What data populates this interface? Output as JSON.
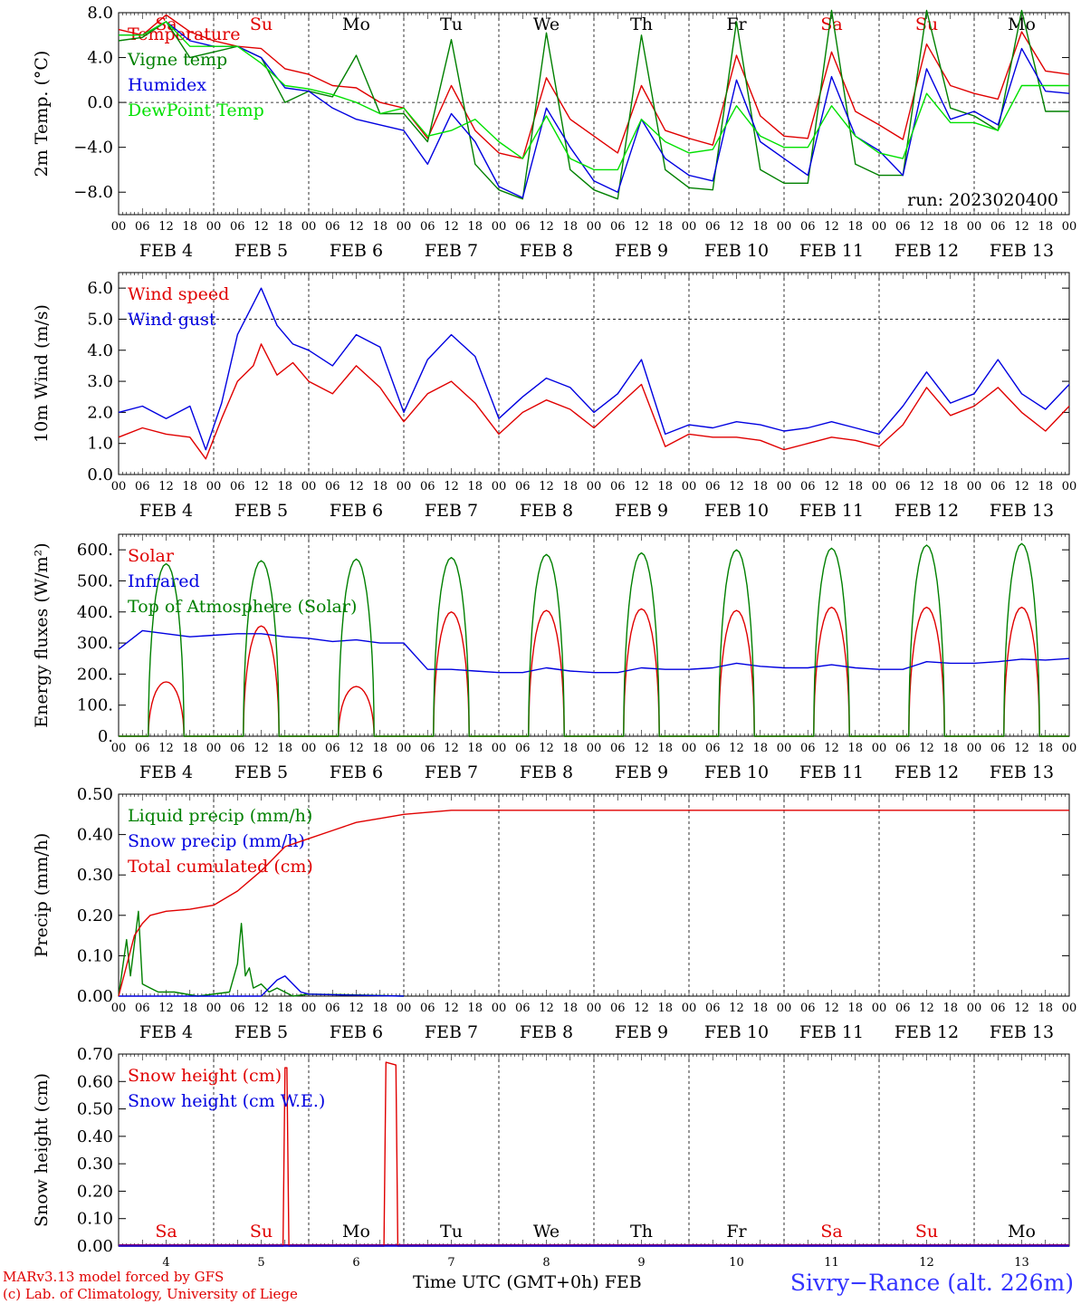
{
  "days": {
    "weekdays": [
      "Sa",
      "Su",
      "Mo",
      "Tu",
      "We",
      "Th",
      "Fr",
      "Sa",
      "Su",
      "Mo"
    ],
    "weekend_color": "#e00000",
    "weekday_color": "#000000",
    "date_labels": [
      "FEB  4",
      "FEB  5",
      "FEB  6",
      "FEB  7",
      "FEB  8",
      "FEB  9",
      "FEB 10",
      "FEB 11",
      "FEB 12",
      "FEB 13"
    ],
    "hour_ticks": [
      "00",
      "06",
      "12",
      "18"
    ],
    "final_tick": "00",
    "day_numbers": [
      "4",
      "5",
      "6",
      "7",
      "8",
      "9",
      "10",
      "11",
      "12",
      "13"
    ]
  },
  "colors": {
    "red": "#e00000",
    "green": "#008000",
    "blue": "#0000e0",
    "lightgreen": "#00e000",
    "purple": "#800080"
  },
  "chart_data": [
    {
      "type": "line",
      "ylabel": "2m Temp. (°C)",
      "ylim": [
        -10,
        8
      ],
      "yticks": [
        "8.0",
        "4.0",
        "0.0",
        "−4.0",
        "−8.0"
      ],
      "ytick_values": [
        8,
        4,
        0,
        -4,
        -8
      ],
      "run_label": "run: 2023020400",
      "x_unit": "hours since FEB 4 00 UTC",
      "series": [
        {
          "name": "Temperature",
          "color": "#e00000",
          "x": [
            0,
            6,
            12,
            18,
            24,
            30,
            36,
            42,
            48,
            54,
            60,
            66,
            72,
            78,
            84,
            90,
            96,
            102,
            108,
            114,
            120,
            126,
            132,
            138,
            144,
            150,
            156,
            162,
            168,
            174,
            180,
            186,
            192,
            198,
            204,
            210,
            216,
            222,
            228,
            234,
            240
          ],
          "y": [
            6.5,
            6,
            7.8,
            6.3,
            5.5,
            5,
            4.8,
            3,
            2.5,
            1.5,
            1.3,
            0,
            -0.5,
            -3.2,
            1.5,
            -2.5,
            -4.5,
            -5,
            2.2,
            -1.5,
            -3,
            -4.5,
            1.5,
            -2.5,
            -3.2,
            -3.8,
            4.2,
            -1.2,
            -3,
            -3.2,
            4.5,
            -0.8,
            -2,
            -3.3,
            5.2,
            1.5,
            0.8,
            0.3,
            6.3,
            2.8,
            2.5
          ]
        },
        {
          "name": "Vigne temp",
          "color": "#008000",
          "x": [
            0,
            6,
            12,
            18,
            24,
            30,
            36,
            42,
            48,
            54,
            60,
            66,
            72,
            78,
            84,
            90,
            96,
            102,
            108,
            114,
            120,
            126,
            132,
            138,
            144,
            150,
            156,
            162,
            168,
            174,
            180,
            186,
            192,
            198,
            204,
            210,
            216,
            222,
            228,
            234,
            240
          ],
          "y": [
            5.5,
            5.8,
            7.2,
            4,
            4.5,
            5,
            4,
            0,
            1,
            0.5,
            4.2,
            -1,
            -1,
            -3.5,
            5.6,
            -5.5,
            -7.8,
            -8.6,
            6.2,
            -6,
            -7.8,
            -8.6,
            6,
            -6,
            -7.6,
            -7.8,
            7.2,
            -6,
            -7.2,
            -7.2,
            8.2,
            -5.5,
            -6.5,
            -6.5,
            8.2,
            -0.5,
            -1.2,
            -2.5,
            8.2,
            -0.8,
            -0.8
          ]
        },
        {
          "name": "Humidex",
          "color": "#0000e0",
          "x": [
            0,
            6,
            12,
            18,
            24,
            30,
            36,
            42,
            48,
            54,
            60,
            66,
            72,
            78,
            84,
            90,
            96,
            102,
            108,
            114,
            120,
            126,
            132,
            138,
            144,
            150,
            156,
            162,
            168,
            174,
            180,
            186,
            192,
            198,
            204,
            210,
            216,
            222,
            228,
            234,
            240
          ],
          "y": [
            6,
            6,
            7.2,
            5.5,
            5,
            5,
            4,
            1.3,
            1,
            -0.5,
            -1.5,
            -2,
            -2.5,
            -5.5,
            -1,
            -3.5,
            -7.5,
            -8.5,
            -0.5,
            -4,
            -7,
            -8,
            -1.5,
            -5,
            -6.5,
            -7,
            2,
            -3.5,
            -5,
            -6.5,
            2.3,
            -3,
            -4.3,
            -6.5,
            3,
            -1.5,
            -0.8,
            -2,
            4.8,
            1,
            0.8
          ]
        },
        {
          "name": "DewPoint Temp",
          "color": "#00e000",
          "x": [
            0,
            6,
            12,
            18,
            24,
            30,
            36,
            42,
            48,
            54,
            60,
            66,
            72,
            78,
            84,
            90,
            96,
            102,
            108,
            114,
            120,
            126,
            132,
            138,
            144,
            150,
            156,
            162,
            168,
            174,
            180,
            186,
            192,
            198,
            204,
            210,
            216,
            222,
            228,
            234,
            240
          ],
          "y": [
            6,
            6,
            7.2,
            5,
            5,
            5,
            3.5,
            1.5,
            1.2,
            0.7,
            0,
            -1,
            -0.5,
            -3,
            -2.5,
            -1.5,
            -3.5,
            -5,
            -1.2,
            -5,
            -6,
            -6,
            -1.5,
            -3.5,
            -4.5,
            -4.2,
            -0.3,
            -3,
            -4,
            -4,
            -0.3,
            -3,
            -4.5,
            -5,
            0.8,
            -1.8,
            -1.8,
            -2.5,
            1.5,
            1.5,
            1.5
          ]
        }
      ]
    },
    {
      "type": "line",
      "ylabel": "10m Wind (m/s)",
      "ylim": [
        0,
        6.5
      ],
      "yticks": [
        "6.0",
        "5.0",
        "4.0",
        "3.0",
        "2.0",
        "1.0",
        "0.0"
      ],
      "ytick_values": [
        6,
        5,
        4,
        3,
        2,
        1,
        0
      ],
      "dashed_level": 5.0,
      "x_unit": "hours since FEB 4 00 UTC",
      "series": [
        {
          "name": "Wind speed",
          "color": "#e00000",
          "x": [
            0,
            6,
            12,
            18,
            22,
            26,
            30,
            34,
            36,
            40,
            44,
            48,
            54,
            60,
            66,
            72,
            78,
            84,
            90,
            96,
            102,
            108,
            114,
            120,
            126,
            132,
            138,
            144,
            150,
            156,
            162,
            168,
            174,
            180,
            186,
            192,
            198,
            204,
            210,
            216,
            222,
            228,
            234,
            240
          ],
          "y": [
            1.2,
            1.5,
            1.3,
            1.2,
            0.5,
            1.8,
            3,
            3.5,
            4.2,
            3.2,
            3.6,
            3,
            2.6,
            3.5,
            2.8,
            1.7,
            2.6,
            3,
            2.3,
            1.3,
            2,
            2.4,
            2.1,
            1.5,
            2.2,
            2.9,
            0.9,
            1.3,
            1.2,
            1.2,
            1.1,
            0.8,
            1.0,
            1.2,
            1.1,
            0.9,
            1.6,
            2.8,
            1.9,
            2.2,
            2.8,
            2.0,
            1.4,
            2.2
          ]
        },
        {
          "name": "Wind gust",
          "color": "#0000e0",
          "x": [
            0,
            6,
            12,
            18,
            22,
            26,
            30,
            34,
            36,
            40,
            44,
            48,
            54,
            60,
            66,
            72,
            78,
            84,
            90,
            96,
            102,
            108,
            114,
            120,
            126,
            132,
            138,
            144,
            150,
            156,
            162,
            168,
            174,
            180,
            186,
            192,
            198,
            204,
            210,
            216,
            222,
            228,
            234,
            240
          ],
          "y": [
            2,
            2.2,
            1.8,
            2.2,
            0.8,
            2.3,
            4.5,
            5.5,
            6,
            4.8,
            4.2,
            4,
            3.5,
            4.5,
            4.1,
            2,
            3.7,
            4.5,
            3.8,
            1.8,
            2.5,
            3.1,
            2.8,
            2,
            2.6,
            3.7,
            1.3,
            1.6,
            1.5,
            1.7,
            1.6,
            1.4,
            1.5,
            1.7,
            1.5,
            1.3,
            2.2,
            3.3,
            2.3,
            2.6,
            3.7,
            2.6,
            2.1,
            2.9
          ]
        }
      ]
    },
    {
      "type": "line",
      "ylabel": "Energy fluxes (W/m²)",
      "ylim": [
        0,
        650
      ],
      "yticks": [
        "600.",
        "500.",
        "400.",
        "300.",
        "200.",
        "100.",
        "0."
      ],
      "ytick_values": [
        600,
        500,
        400,
        300,
        200,
        100,
        0
      ],
      "x_unit": "hours since FEB 4 00 UTC",
      "solar_noon_hour": 12,
      "solar_halfwidth_hours": 4.5,
      "series": [
        {
          "name": "Solar",
          "color": "#e00000",
          "daily_peaks": [
            175,
            355,
            160,
            400,
            405,
            410,
            405,
            415,
            415,
            415
          ]
        },
        {
          "name": "Infrared",
          "color": "#0000e0",
          "x": [
            0,
            6,
            12,
            18,
            24,
            30,
            36,
            42,
            48,
            54,
            60,
            66,
            72,
            78,
            84,
            90,
            96,
            102,
            108,
            114,
            120,
            126,
            132,
            138,
            144,
            150,
            156,
            162,
            168,
            174,
            180,
            186,
            192,
            198,
            204,
            210,
            216,
            222,
            228,
            234,
            240
          ],
          "y": [
            280,
            340,
            330,
            320,
            325,
            330,
            330,
            320,
            315,
            305,
            310,
            300,
            300,
            215,
            215,
            210,
            205,
            205,
            220,
            210,
            205,
            205,
            220,
            215,
            215,
            220,
            235,
            225,
            220,
            220,
            230,
            220,
            215,
            215,
            240,
            235,
            235,
            240,
            248,
            245,
            250
          ]
        },
        {
          "name": "Top of Atmosphere (Solar)",
          "color": "#008000",
          "daily_peaks": [
            555,
            565,
            570,
            575,
            585,
            590,
            600,
            605,
            615,
            620
          ]
        }
      ]
    },
    {
      "type": "line",
      "ylabel": "Precip (mm/h)",
      "ylim": [
        0,
        0.5
      ],
      "yticks": [
        "0.50",
        "0.40",
        "0.30",
        "0.20",
        "0.10",
        "0.00"
      ],
      "ytick_values": [
        0.5,
        0.4,
        0.3,
        0.2,
        0.1,
        0
      ],
      "x_unit": "hours since FEB 4 00 UTC",
      "series": [
        {
          "name": "Liquid precip (mm/h)",
          "color": "#008000",
          "x": [
            0,
            2,
            3,
            5,
            6,
            8,
            10,
            14,
            20,
            28,
            30,
            31,
            32,
            33,
            34,
            36,
            38,
            40,
            44,
            48,
            60,
            72
          ],
          "y": [
            0,
            0.14,
            0.05,
            0.21,
            0.03,
            0.02,
            0.01,
            0.01,
            0,
            0.01,
            0.08,
            0.18,
            0.05,
            0.07,
            0.02,
            0.03,
            0.01,
            0.02,
            0,
            0.005,
            0.003,
            0
          ]
        },
        {
          "name": "Snow precip (mm/h)",
          "color": "#0000e0",
          "x": [
            0,
            36,
            38,
            40,
            42,
            44,
            46,
            48,
            60,
            72
          ],
          "y": [
            0,
            0,
            0.02,
            0.04,
            0.05,
            0.03,
            0.01,
            0.005,
            0.002,
            0
          ]
        },
        {
          "name": "Total cumulated (cm)",
          "color": "#e00000",
          "x": [
            0,
            4,
            6,
            8,
            12,
            18,
            24,
            30,
            36,
            42,
            48,
            54,
            60,
            66,
            72,
            78,
            84,
            240
          ],
          "y": [
            0,
            0.15,
            0.18,
            0.2,
            0.21,
            0.215,
            0.225,
            0.26,
            0.31,
            0.37,
            0.39,
            0.41,
            0.43,
            0.44,
            0.45,
            0.455,
            0.46,
            0.46
          ]
        }
      ]
    },
    {
      "type": "line",
      "ylabel": "Snow height (cm)",
      "ylim": [
        0,
        0.7
      ],
      "yticks": [
        "0.70",
        "0.60",
        "0.50",
        "0.40",
        "0.30",
        "0.20",
        "0.10",
        "0.00"
      ],
      "ytick_values": [
        0.7,
        0.6,
        0.5,
        0.4,
        0.3,
        0.2,
        0.1,
        0
      ],
      "x_unit": "hours since FEB 4 00 UTC",
      "series": [
        {
          "name": "Snow height (cm)",
          "color": "#e00000",
          "x": [
            0,
            41.5,
            42,
            42.5,
            43,
            67,
            67.5,
            70,
            70.5,
            240
          ],
          "y": [
            0,
            0,
            0.65,
            0.65,
            0,
            0,
            0.67,
            0.66,
            0,
            0
          ]
        },
        {
          "name": "Snow height (cm W.E.)",
          "color": "#0000e0",
          "x": [
            0,
            240
          ],
          "y": [
            0,
            0
          ]
        }
      ]
    }
  ],
  "footer": {
    "axis_title": "Time UTC (GMT+0h)",
    "month": "FEB",
    "model_line1": "MARv3.13 model forced by GFS",
    "model_line2": "(c) Lab. of Climatology, University of Liege",
    "station": "Sivry−Rance (alt. 226m)"
  }
}
